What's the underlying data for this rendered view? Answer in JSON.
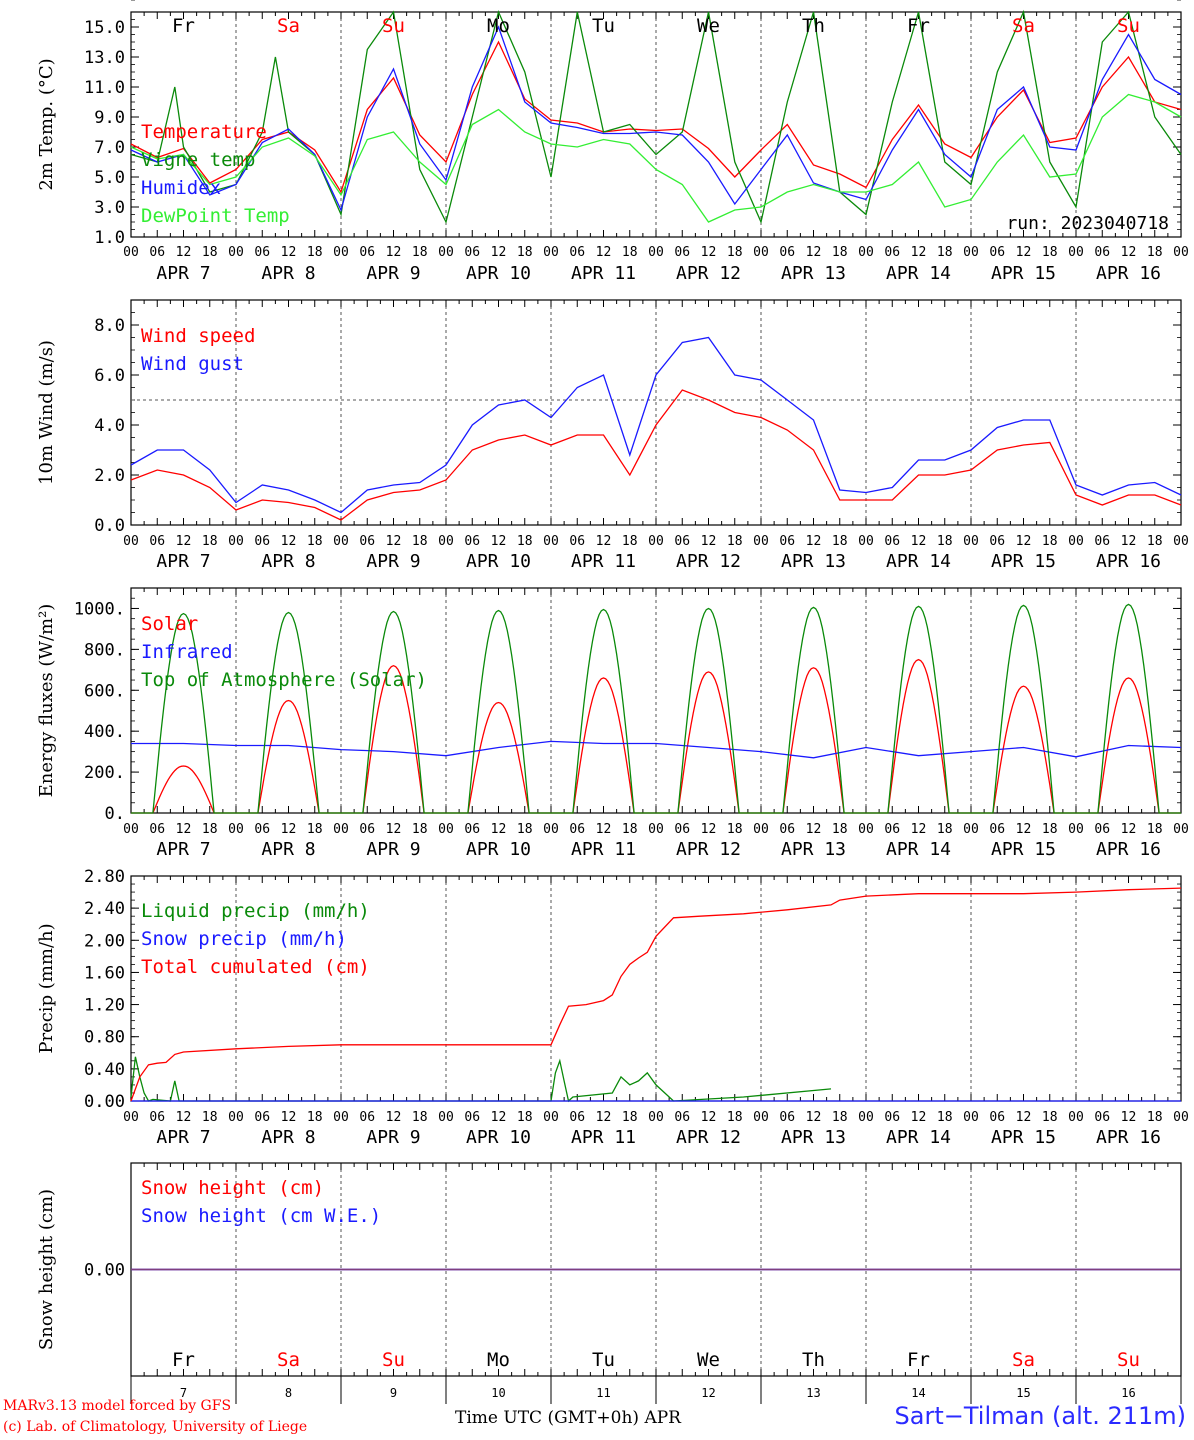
{
  "colors": {
    "red": "#ff0000",
    "green": "#0a8a0a",
    "lightgreen": "#33ee33",
    "blue": "#1a1aff",
    "purple": "#7f3f7f"
  },
  "days": {
    "abbrev": [
      "Fr",
      "Sa",
      "Su",
      "Mo",
      "Tu",
      "We",
      "Th",
      "Fr",
      "Sa",
      "Su"
    ],
    "abbrev_colors": [
      "#000000",
      "#ff0000",
      "#ff0000",
      "#000000",
      "#000000",
      "#000000",
      "#000000",
      "#000000",
      "#ff0000",
      "#ff0000"
    ],
    "dates": [
      "APR  7",
      "APR  8",
      "APR  9",
      "APR 10",
      "APR 11",
      "APR 12",
      "APR 13",
      "APR 14",
      "APR 15",
      "APR 16"
    ],
    "numbers": [
      "7",
      "8",
      "9",
      "10",
      "11",
      "12",
      "13",
      "14",
      "15",
      "16"
    ],
    "hour_ticks": [
      "00",
      "06",
      "12",
      "18"
    ],
    "final_tick": "00"
  },
  "footer": {
    "model": "MARv3.13 model forced by GFS",
    "lab": "(c) Lab. of Climatology, University of Liege",
    "xlabel": "Time UTC (GMT+0h) APR",
    "station": "Sart−Tilman (alt. 211m)"
  },
  "chart_data": [
    {
      "id": "temperature",
      "type": "line",
      "ylabel": "2m Temp. (°C)",
      "ylim": [
        1.0,
        16.0
      ],
      "yticks": [
        "1.0",
        "3.0",
        "5.0",
        "7.0",
        "9.0",
        "11.0",
        "13.0",
        "15.0"
      ],
      "run_label": "run: 2023040718",
      "x_unit": "hours since Apr 7 00 UTC",
      "series": [
        {
          "name": "Temperature",
          "color": "#ff0000",
          "x": [
            0,
            6,
            12,
            18,
            24,
            30,
            36,
            42,
            48,
            54,
            60,
            66,
            72,
            78,
            84,
            90,
            96,
            102,
            108,
            114,
            120,
            126,
            132,
            138,
            144,
            150,
            156,
            162,
            168,
            174,
            180,
            186,
            192,
            198,
            204,
            210,
            216,
            222,
            228,
            234,
            240
          ],
          "values": [
            7.2,
            6.3,
            6.9,
            4.6,
            5.5,
            7.5,
            8.0,
            6.8,
            4.0,
            9.5,
            11.6,
            7.8,
            6.0,
            10.5,
            14.0,
            10.2,
            8.8,
            8.6,
            8.0,
            8.2,
            8.1,
            8.2,
            6.9,
            5.0,
            6.8,
            8.5,
            5.8,
            5.2,
            4.3,
            7.5,
            9.8,
            7.2,
            6.3,
            9.0,
            10.8,
            7.3,
            7.6,
            11.0,
            13.0,
            10.0,
            9.5
          ]
        },
        {
          "name": "Vigne temp",
          "color": "#0a8a0a",
          "x": [
            0,
            6,
            10,
            12,
            18,
            24,
            30,
            33,
            36,
            42,
            48,
            54,
            60,
            66,
            72,
            78,
            84,
            90,
            96,
            102,
            108,
            114,
            120,
            126,
            132,
            138,
            144,
            150,
            156,
            162,
            168,
            174,
            180,
            186,
            192,
            198,
            204,
            210,
            216,
            222,
            228,
            234,
            240
          ],
          "values": [
            6.5,
            6.0,
            11.0,
            7.0,
            4.0,
            4.5,
            8.0,
            13.0,
            8.0,
            6.5,
            2.5,
            13.5,
            16.0,
            5.5,
            2.0,
            9.0,
            16.0,
            12.0,
            5.0,
            16.0,
            8.0,
            8.5,
            6.5,
            8.0,
            16.0,
            6.0,
            2.0,
            10.0,
            16.0,
            4.0,
            2.5,
            10.0,
            16.0,
            6.0,
            4.5,
            12.0,
            16.0,
            6.0,
            3.0,
            14.0,
            16.0,
            9.0,
            6.5
          ]
        },
        {
          "name": "Humidex",
          "color": "#1a1aff",
          "x": [
            0,
            6,
            12,
            18,
            24,
            30,
            36,
            42,
            48,
            54,
            60,
            66,
            72,
            78,
            84,
            90,
            96,
            102,
            108,
            114,
            120,
            126,
            132,
            138,
            144,
            150,
            156,
            162,
            168,
            174,
            180,
            186,
            192,
            198,
            204,
            210,
            216,
            222,
            228,
            234,
            240
          ],
          "values": [
            6.8,
            6.0,
            6.5,
            3.8,
            4.5,
            7.3,
            8.2,
            6.5,
            2.8,
            9.0,
            12.2,
            7.2,
            4.8,
            11.0,
            15.0,
            10.0,
            8.6,
            8.3,
            7.9,
            7.9,
            8.0,
            7.8,
            6.0,
            3.2,
            5.5,
            7.8,
            4.6,
            4.0,
            3.5,
            6.8,
            9.5,
            6.5,
            5.0,
            9.5,
            11.0,
            7.0,
            6.8,
            11.5,
            14.5,
            11.5,
            10.5
          ]
        },
        {
          "name": "DewPoint Temp",
          "color": "#33ee33",
          "x": [
            0,
            6,
            12,
            18,
            24,
            30,
            36,
            42,
            48,
            54,
            60,
            66,
            72,
            78,
            84,
            90,
            96,
            102,
            108,
            114,
            120,
            126,
            132,
            138,
            144,
            150,
            156,
            162,
            168,
            174,
            180,
            186,
            192,
            198,
            204,
            210,
            216,
            222,
            228,
            234,
            240
          ],
          "values": [
            7.0,
            6.2,
            6.5,
            4.5,
            5.0,
            7.0,
            7.6,
            6.4,
            3.8,
            7.5,
            8.0,
            6.0,
            4.5,
            8.5,
            9.5,
            8.0,
            7.2,
            7.0,
            7.5,
            7.2,
            5.5,
            4.5,
            2.0,
            2.8,
            3.0,
            4.0,
            4.5,
            4.0,
            4.0,
            4.5,
            6.0,
            3.0,
            3.5,
            6.0,
            7.8,
            5.0,
            5.2,
            9.0,
            10.5,
            10.0,
            9.0
          ]
        }
      ]
    },
    {
      "id": "wind",
      "type": "line",
      "ylabel": "10m Wind (m/s)",
      "ylim": [
        0.0,
        9.0
      ],
      "yticks": [
        "0.0",
        "2.0",
        "4.0",
        "6.0",
        "8.0"
      ],
      "ref_line": 5.0,
      "series": [
        {
          "name": "Wind speed",
          "color": "#ff0000",
          "x": [
            0,
            6,
            12,
            18,
            24,
            30,
            36,
            42,
            48,
            54,
            60,
            66,
            72,
            78,
            84,
            90,
            96,
            102,
            108,
            114,
            120,
            126,
            132,
            138,
            144,
            150,
            156,
            162,
            168,
            174,
            180,
            186,
            192,
            198,
            204,
            210,
            216,
            222,
            228,
            234,
            240
          ],
          "values": [
            1.8,
            2.2,
            2.0,
            1.5,
            0.6,
            1.0,
            0.9,
            0.7,
            0.2,
            1.0,
            1.3,
            1.4,
            1.8,
            3.0,
            3.4,
            3.6,
            3.2,
            3.6,
            3.6,
            2.0,
            4.0,
            5.4,
            5.0,
            4.5,
            4.3,
            3.8,
            3.0,
            1.0,
            1.0,
            1.0,
            2.0,
            2.0,
            2.2,
            3.0,
            3.2,
            3.3,
            1.2,
            0.8,
            1.2,
            1.2,
            0.8
          ]
        },
        {
          "name": "Wind gust",
          "color": "#1a1aff",
          "x": [
            0,
            6,
            12,
            18,
            24,
            30,
            36,
            42,
            48,
            54,
            60,
            66,
            72,
            78,
            84,
            90,
            96,
            102,
            108,
            114,
            120,
            126,
            132,
            138,
            144,
            150,
            156,
            162,
            168,
            174,
            180,
            186,
            192,
            198,
            204,
            210,
            216,
            222,
            228,
            234,
            240
          ],
          "values": [
            2.4,
            3.0,
            3.0,
            2.2,
            0.9,
            1.6,
            1.4,
            1.0,
            0.5,
            1.4,
            1.6,
            1.7,
            2.4,
            4.0,
            4.8,
            5.0,
            4.3,
            5.5,
            6.0,
            2.8,
            6.0,
            7.3,
            7.5,
            6.0,
            5.8,
            5.0,
            4.2,
            1.4,
            1.3,
            1.5,
            2.6,
            2.6,
            3.0,
            3.9,
            4.2,
            4.2,
            1.6,
            1.2,
            1.6,
            1.7,
            1.2
          ]
        }
      ]
    },
    {
      "id": "energy",
      "type": "line",
      "ylabel": "Energy fluxes (W/m²)",
      "ylim": [
        0,
        1100
      ],
      "yticks": [
        "0.",
        "200.",
        "400.",
        "600.",
        "800.",
        "1000."
      ],
      "series": [
        {
          "name": "Solar",
          "color": "#ff0000",
          "daily_peak": [
            230,
            550,
            720,
            540,
            660,
            690,
            710,
            750,
            620,
            660
          ]
        },
        {
          "name": "Infrared",
          "color": "#1a1aff",
          "x": [
            0,
            12,
            24,
            36,
            48,
            60,
            72,
            84,
            96,
            108,
            120,
            132,
            144,
            156,
            168,
            180,
            192,
            204,
            216,
            228,
            240
          ],
          "values": [
            340,
            340,
            330,
            330,
            310,
            300,
            280,
            320,
            350,
            340,
            340,
            320,
            300,
            270,
            320,
            280,
            300,
            320,
            275,
            330,
            320
          ]
        },
        {
          "name": "Top of Atmosphere (Solar)",
          "color": "#0a8a0a",
          "daily_peak": [
            975,
            980,
            985,
            990,
            995,
            1000,
            1005,
            1010,
            1015,
            1020
          ]
        }
      ]
    },
    {
      "id": "precip",
      "type": "line",
      "ylabel": "Precip (mm/h)",
      "ylim": [
        0.0,
        2.8
      ],
      "yticks": [
        "0.00",
        "0.40",
        "0.80",
        "1.20",
        "1.60",
        "2.00",
        "2.40",
        "2.80"
      ],
      "series": [
        {
          "name": "Liquid precip (mm/h)",
          "color": "#0a8a0a",
          "x": [
            0,
            1,
            2,
            3,
            4,
            5,
            9,
            10,
            11,
            96,
            97,
            98,
            99,
            100,
            101,
            110,
            112,
            114,
            116,
            118,
            120,
            124,
            140,
            160
          ],
          "values": [
            0.05,
            0.55,
            0.3,
            0.1,
            0.0,
            0.02,
            0.0,
            0.25,
            0.0,
            0.0,
            0.35,
            0.5,
            0.25,
            0.0,
            0.05,
            0.1,
            0.3,
            0.2,
            0.25,
            0.35,
            0.2,
            0.0,
            0.05,
            0.15
          ]
        },
        {
          "name": "Snow precip (mm/h)",
          "color": "#1a1aff",
          "x": [
            0,
            240
          ],
          "values": [
            0,
            0
          ]
        },
        {
          "name": "Total cumulated (cm)",
          "color": "#ff0000",
          "x": [
            0,
            2,
            4,
            6,
            8,
            10,
            12,
            24,
            36,
            48,
            60,
            72,
            84,
            90,
            96,
            98,
            100,
            104,
            108,
            110,
            112,
            114,
            116,
            118,
            120,
            124,
            130,
            140,
            150,
            160,
            162,
            168,
            180,
            192,
            204,
            216,
            228,
            240
          ],
          "values": [
            0.0,
            0.3,
            0.45,
            0.47,
            0.48,
            0.58,
            0.61,
            0.65,
            0.68,
            0.7,
            0.7,
            0.7,
            0.7,
            0.7,
            0.7,
            0.95,
            1.18,
            1.2,
            1.25,
            1.32,
            1.55,
            1.7,
            1.78,
            1.85,
            2.05,
            2.28,
            2.3,
            2.33,
            2.38,
            2.44,
            2.5,
            2.55,
            2.58,
            2.58,
            2.58,
            2.6,
            2.63,
            2.65
          ]
        }
      ]
    },
    {
      "id": "snow",
      "type": "line",
      "ylabel": "Snow height (cm)",
      "ylim": [
        -1,
        1
      ],
      "yticks": [
        "0.00"
      ],
      "series": [
        {
          "name": "Snow height (cm)",
          "color": "#ff0000",
          "x": [
            0,
            240
          ],
          "values": [
            0,
            0
          ]
        },
        {
          "name": "Snow height (cm W.E.)",
          "color": "#1a1aff",
          "x": [
            0,
            240
          ],
          "values": [
            0,
            0
          ]
        }
      ]
    }
  ]
}
